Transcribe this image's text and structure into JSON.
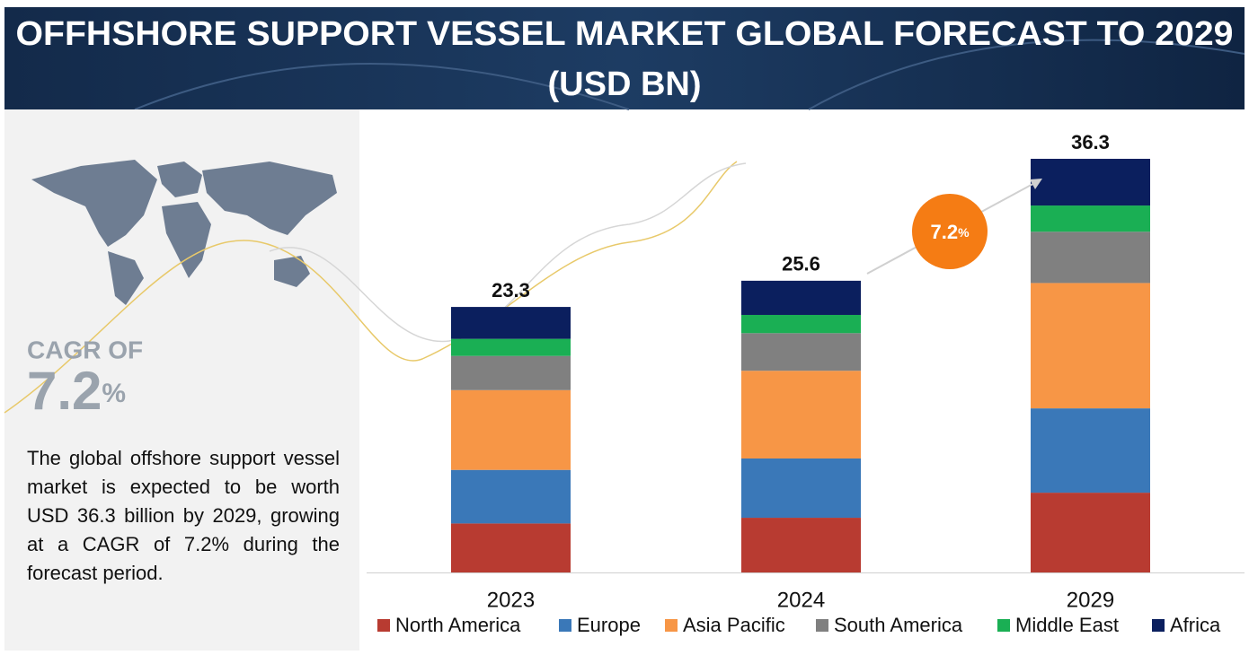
{
  "header": {
    "title": [
      "OFFHSHORE SUPPORT VESSEL MARKET GLOBAL FORECAST TO 2029",
      "(USD BN)"
    ]
  },
  "sidebar": {
    "cagr_label": "CAGR OF",
    "cagr_value": "7.2",
    "cagr_unit": "%",
    "description": "The global offshore support vessel market is expected to be worth USD 36.3 billion by 2029, growing at a CAGR of 7.2% during the forecast period."
  },
  "chart_data": {
    "type": "stacked_bar",
    "categories": [
      "2023",
      "2024",
      "2029"
    ],
    "series": [
      {
        "name": "North America",
        "color": "#b83b31",
        "values": [
          4.3,
          4.8,
          7.0
        ]
      },
      {
        "name": "Europe",
        "color": "#3a78b8",
        "values": [
          4.7,
          5.2,
          7.4
        ]
      },
      {
        "name": "Asia Pacific",
        "color": "#f79646",
        "values": [
          7.0,
          7.7,
          11.0
        ]
      },
      {
        "name": "South America",
        "color": "#808080",
        "values": [
          3.0,
          3.3,
          4.5
        ]
      },
      {
        "name": "Middle East",
        "color": "#1aaf54",
        "values": [
          1.5,
          1.6,
          2.3
        ]
      },
      {
        "name": "Africa",
        "color": "#0b1f5e",
        "values": [
          2.8,
          3.0,
          4.1
        ]
      }
    ],
    "totals": [
      23.3,
      25.6,
      36.3
    ],
    "annotation": {
      "value": "7.2",
      "unit": "%",
      "color": "#f57c14"
    },
    "ylim": [
      0,
      40
    ],
    "legend": "bottom"
  }
}
